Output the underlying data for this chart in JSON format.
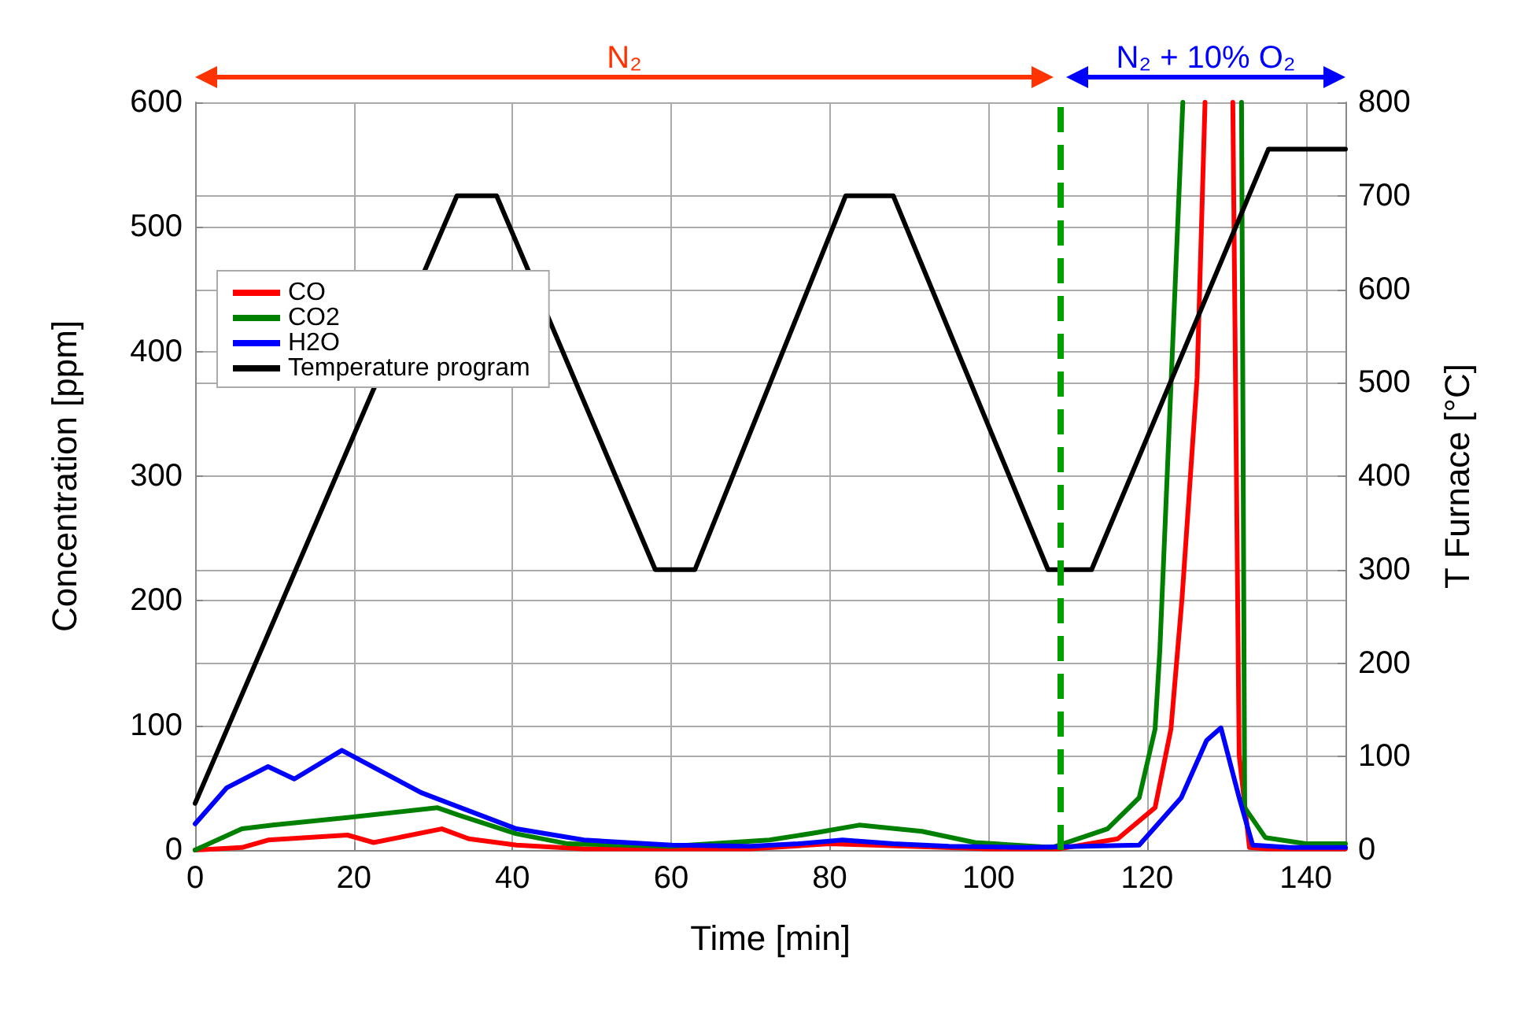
{
  "chart_data": {
    "type": "line",
    "xlabel": "Time [min]",
    "ylabel": "Concentration [ppm]",
    "y2label": "T Furnace [°C]",
    "xlim": [
      0,
      145
    ],
    "xticks": [
      0,
      20,
      40,
      60,
      80,
      100,
      120,
      140
    ],
    "ylim": [
      0,
      600
    ],
    "yticks": [
      0,
      100,
      200,
      300,
      400,
      500,
      600
    ],
    "y2lim": [
      0,
      800
    ],
    "y2ticks": [
      0,
      100,
      200,
      300,
      400,
      500,
      600,
      700,
      800
    ],
    "grid": true,
    "legend": "top left",
    "marker": "none",
    "line_style": "solid",
    "series": [
      {
        "name": "CO",
        "color": "#ff0000",
        "x": [
          0,
          5.9,
          9.2,
          19.2,
          22.5,
          31.1,
          34.5,
          40.5,
          49,
          60,
          70,
          80,
          90,
          100,
          109,
          116.3,
          121,
          123,
          124.4,
          126.3,
          127.3,
          127.4,
          130.8,
          130.9,
          131.6,
          132.9,
          135,
          140,
          145
        ],
        "values": [
          0,
          2,
          8,
          12,
          6,
          17,
          9,
          4,
          1,
          1,
          1,
          5,
          3,
          1,
          1,
          9,
          34,
          97,
          202,
          379,
          600,
          null,
          600,
          600,
          76,
          2,
          1,
          1,
          1
        ]
      },
      {
        "name": "CO2",
        "color": "#008000",
        "x": [
          0,
          5.9,
          9.8,
          19.2,
          30.5,
          33.2,
          40.5,
          47,
          60,
          72.4,
          78.4,
          83.7,
          91.6,
          98.3,
          108,
          115,
          119,
          121,
          121.6,
          124.5,
          124.6,
          131.9,
          132,
          132.3,
          134.9,
          140,
          145
        ],
        "values": [
          0,
          17,
          20,
          26,
          34,
          28,
          13,
          5,
          3,
          8,
          14,
          20,
          15,
          6,
          2,
          17,
          42,
          97,
          160,
          600,
          null,
          600,
          600,
          34,
          10,
          5,
          5
        ]
      },
      {
        "name": "H2O",
        "color": "#0000ff",
        "x": [
          0,
          4,
          9.2,
          12.5,
          18.5,
          28.5,
          40.5,
          49,
          60,
          70,
          76,
          81.6,
          88,
          95,
          105,
          119,
          124.3,
          127.5,
          129.3,
          131.6,
          133.3,
          138,
          145
        ],
        "values": [
          21,
          50,
          67,
          57,
          80,
          46,
          17,
          8,
          4,
          3,
          5,
          8,
          5,
          3,
          2,
          4,
          42,
          88,
          98,
          42,
          4,
          2,
          2
        ]
      },
      {
        "name": "Temperature program",
        "color": "#000000",
        "axis": "y2",
        "x": [
          0,
          33,
          38,
          58,
          63,
          82,
          88,
          107.5,
          113,
          135.3,
          145
        ],
        "values": [
          50,
          700,
          700,
          300,
          300,
          700,
          700,
          300,
          300,
          750,
          750
        ]
      }
    ],
    "ref_lines": [
      {
        "axis": "x",
        "value": 109,
        "color": "#00a000",
        "line_style": "dashed"
      }
    ],
    "annotations": [
      "N₂",
      "N₂ + 10% O₂"
    ]
  }
}
